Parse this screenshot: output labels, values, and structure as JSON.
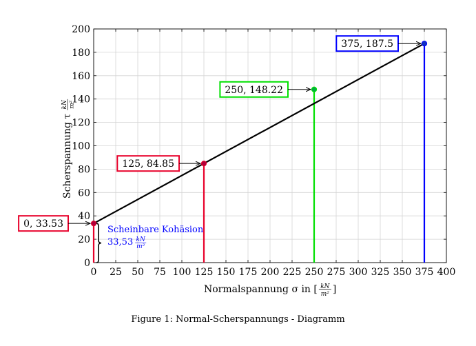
{
  "chart_data": {
    "type": "line",
    "x_axis": {
      "label_main": "Normalspannung σ in [",
      "label_unit_num": "kN",
      "label_unit_den": "m²",
      "label_close": "]",
      "min": 0,
      "max": 400,
      "step": 25
    },
    "y_axis": {
      "label_main": "Scherspannung τ",
      "label_unit_num": "kN",
      "label_unit_den": "m²",
      "min": 0,
      "max": 200,
      "step": 20
    },
    "grid": true,
    "line": {
      "x": [
        0,
        375
      ],
      "y": [
        33.53,
        187.5
      ],
      "color": "#000000"
    },
    "points": [
      {
        "x": 0,
        "y": 33.53,
        "label": "0, 33.53",
        "color": "#e8002a",
        "marker": "#b0003a"
      },
      {
        "x": 125,
        "y": 84.85,
        "label": "125, 84.85",
        "color": "#e8002a",
        "marker": "#b0003a"
      },
      {
        "x": 250,
        "y": 148.22,
        "label": "250, 148.22",
        "color": "#00e000",
        "marker": "#00b040"
      },
      {
        "x": 375,
        "y": 187.5,
        "label": "375, 187.5",
        "color": "#0000ff",
        "marker": "#1030c0"
      }
    ],
    "annotation": {
      "line1": "Scheinbare Kohäsion",
      "line2_value": "33,53",
      "unit_num": "kN",
      "unit_den": "m²",
      "color": "#0000ff"
    }
  },
  "caption": "Figure 1: Normal-Scherspannungs - Diagramm"
}
